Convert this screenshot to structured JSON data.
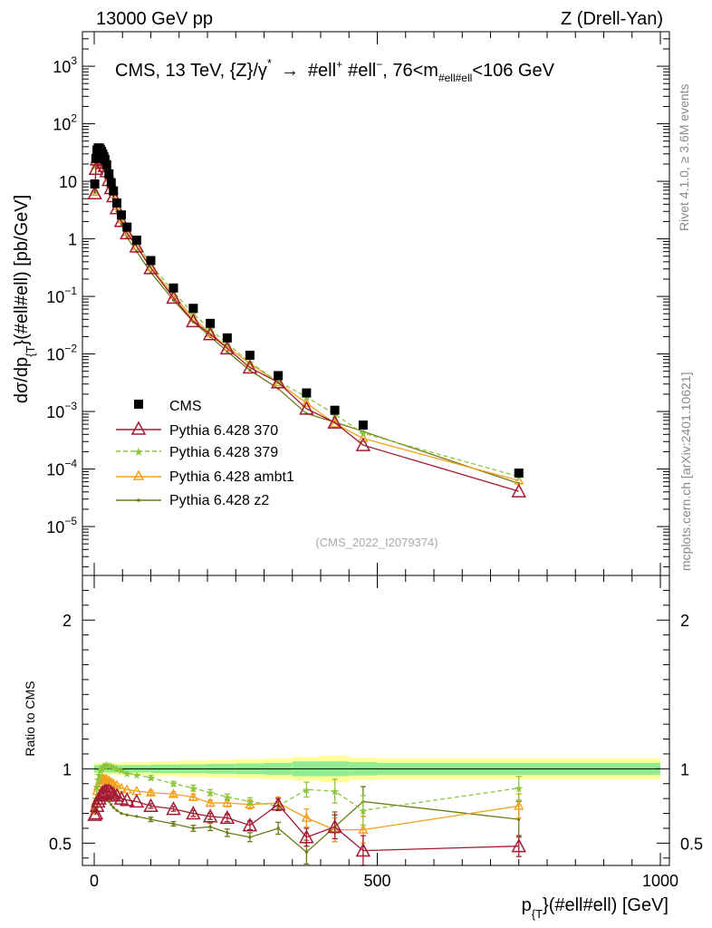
{
  "header": {
    "left": "13000 GeV pp",
    "right": "Z (Drell-Yan)"
  },
  "side_labels": {
    "rivet": "Rivet 4.1.0, ≥ 3.6M events",
    "mcplots": "mcplots.cern.ch [arXiv:2401.10621]"
  },
  "colors": {
    "data": "#000000",
    "p370": "#a31a32",
    "p379": "#8cc63e",
    "ambt1": "#f2a01c",
    "z2": "#6f7a14",
    "band_inner": "#90ee90",
    "band_outer": "#ffff99"
  },
  "chart_data": [
    {
      "type": "line",
      "panel": "main",
      "title": "CMS, 13 TeV, {Z}/γ* → #ell⁺ #ell⁻, 76<m#ell#ell<106 GeV",
      "title_parts": {
        "main": "CMS, 13 TeV, {Z}/γ",
        "star": "*",
        "arrow": "→",
        "lep1": "#ell",
        "plus": "+",
        "lep2": "#ell",
        "minus": "−",
        "mass": ", 76<m",
        "mass_sub": "#ell#ell",
        "mass_end": "<106 GeV"
      },
      "ylabel_parts": {
        "a": "dσ/dp",
        "sub": "{T",
        "b": "}(#ell#ell) [pb/GeV]"
      },
      "xlim": [
        -20,
        1000
      ],
      "ylim_log10": [
        -5.85,
        3.6
      ],
      "x_ticks": [
        0,
        500,
        1000
      ],
      "y_ticks": [
        {
          "exp": 3,
          "label": "10",
          "sup": "3"
        },
        {
          "exp": 2,
          "label": "10",
          "sup": "2"
        },
        {
          "exp": 1,
          "label": "10",
          "sup": ""
        },
        {
          "exp": 0,
          "label": "1",
          "sup": ""
        },
        {
          "exp": -1,
          "label": "10",
          "sup": "−1"
        },
        {
          "exp": -2,
          "label": "10",
          "sup": "−2"
        },
        {
          "exp": -3,
          "label": "10",
          "sup": "−3"
        },
        {
          "exp": -4,
          "label": "10",
          "sup": "−4"
        },
        {
          "exp": -5,
          "label": "10",
          "sup": "−5"
        }
      ],
      "watermark": "(CMS_2022_I2079374)",
      "legend_position": "bottom-left",
      "x": [
        1,
        3,
        5,
        7,
        9,
        11,
        13,
        15,
        17,
        19,
        22,
        26,
        30,
        34,
        40,
        48,
        58,
        75,
        100,
        140,
        175,
        205,
        235,
        275,
        325,
        375,
        425,
        475,
        750
      ],
      "series": [
        {
          "name": "CMS",
          "key": "data",
          "values": [
            9.0,
            25,
            35,
            38,
            38,
            36,
            33,
            30,
            27,
            24,
            19.5,
            13.5,
            9.5,
            6.8,
            4.2,
            2.6,
            1.6,
            0.95,
            0.42,
            0.14,
            0.062,
            0.034,
            0.019,
            0.0095,
            0.0042,
            0.0021,
            0.00105,
            0.00058,
            8.5e-05
          ]
        },
        {
          "name": "Pythia 6.428 370",
          "key": "p370",
          "values": [
            6.2,
            16.5,
            24,
            27.5,
            28.5,
            28,
            26,
            23.5,
            21,
            18.5,
            15,
            10.5,
            7.6,
            5.5,
            3.4,
            2.05,
            1.25,
            0.74,
            0.31,
            0.095,
            0.037,
            0.022,
            0.0125,
            0.0058,
            0.0032,
            0.00112,
            0.00064,
            0.00026,
            4.1e-05
          ],
          "err": [
            0,
            0,
            0,
            0,
            0,
            0,
            0,
            0,
            0,
            0,
            0,
            0,
            0,
            0,
            0,
            0,
            0,
            0,
            0,
            0,
            0,
            0,
            0,
            0,
            0,
            0,
            0,
            0,
            0
          ]
        },
        {
          "name": "Pythia 6.428 379",
          "key": "p379",
          "values": [
            6.6,
            19.5,
            30,
            35,
            37,
            37,
            34,
            31,
            28,
            24.5,
            20,
            13.8,
            9.8,
            6.8,
            4.2,
            2.5,
            1.48,
            0.85,
            0.36,
            0.12,
            0.05,
            0.027,
            0.015,
            0.0071,
            0.0033,
            0.0018,
            0.00089,
            0.00042,
            7.4e-05
          ]
        },
        {
          "name": "Pythia 6.428 ambt1",
          "key": "ambt1",
          "values": [
            6.5,
            19,
            28.5,
            33,
            34.5,
            34,
            31.5,
            28.5,
            25.5,
            22.5,
            18,
            12.5,
            8.6,
            6.0,
            3.7,
            2.2,
            1.3,
            0.75,
            0.32,
            0.105,
            0.042,
            0.023,
            0.0133,
            0.0068,
            0.0032,
            0.0014,
            0.00062,
            0.00034,
            6.3e-05
          ]
        },
        {
          "name": "Pythia 6.428 z2",
          "key": "z2",
          "values": [
            6.4,
            18,
            26,
            30,
            31,
            30.5,
            28,
            25,
            22.5,
            19.5,
            15.5,
            10.5,
            7.2,
            5.0,
            3.0,
            1.8,
            1.05,
            0.6,
            0.26,
            0.086,
            0.036,
            0.02,
            0.011,
            0.0052,
            0.0025,
            0.00092,
            0.00065,
            0.00045,
            5.6e-05
          ]
        }
      ]
    },
    {
      "type": "line",
      "panel": "ratio",
      "ylabel": "Ratio to CMS",
      "xlabel_parts": {
        "a": "p",
        "sub": "{T",
        "b": "}(#ell#ell) [GeV]"
      },
      "xlim": [
        -20,
        1000
      ],
      "ylim": [
        0.35,
        2.3
      ],
      "x_ticks": [
        0,
        500,
        1000
      ],
      "x_tick_labels": [
        "0",
        "500",
        "1000"
      ],
      "y_ticks": [
        0.5,
        1,
        2
      ],
      "y_tick_labels": [
        "0.5",
        "1",
        "2"
      ],
      "band_edges": [
        0,
        50,
        100,
        150,
        200,
        250,
        300,
        350,
        400,
        450,
        500,
        1000
      ],
      "band_inner": [
        0.025,
        0.025,
        0.028,
        0.03,
        0.033,
        0.036,
        0.04,
        0.05,
        0.05,
        0.045,
        0.04
      ],
      "band_outer": [
        0.04,
        0.045,
        0.05,
        0.055,
        0.06,
        0.065,
        0.07,
        0.08,
        0.09,
        0.075,
        0.07
      ],
      "x": [
        1,
        3,
        5,
        7,
        9,
        11,
        13,
        15,
        17,
        19,
        22,
        26,
        30,
        34,
        40,
        48,
        58,
        75,
        100,
        140,
        175,
        205,
        235,
        275,
        325,
        375,
        425,
        475,
        750
      ],
      "series": [
        {
          "name": "Pythia 6.428 370",
          "key": "p370",
          "values": [
            0.69,
            0.7,
            0.75,
            0.78,
            0.8,
            0.82,
            0.83,
            0.84,
            0.84,
            0.85,
            0.85,
            0.85,
            0.84,
            0.83,
            0.82,
            0.8,
            0.79,
            0.78,
            0.75,
            0.73,
            0.7,
            0.68,
            0.67,
            0.62,
            0.76,
            0.54,
            0.61,
            0.45,
            0.48
          ],
          "err": [
            0.01,
            0.01,
            0.01,
            0.01,
            0.01,
            0.01,
            0.01,
            0.01,
            0.01,
            0.01,
            0.01,
            0.01,
            0.01,
            0.01,
            0.01,
            0.01,
            0.01,
            0.01,
            0.015,
            0.015,
            0.02,
            0.02,
            0.025,
            0.03,
            0.04,
            0.06,
            0.08,
            0.1,
            0.07
          ]
        },
        {
          "name": "Pythia 6.428 379",
          "key": "p379",
          "values": [
            0.73,
            0.8,
            0.88,
            0.93,
            0.96,
            0.99,
            1.0,
            1.01,
            1.02,
            1.02,
            1.03,
            1.02,
            1.02,
            1.01,
            1.0,
            0.99,
            0.97,
            0.96,
            0.94,
            0.9,
            0.87,
            0.84,
            0.81,
            0.78,
            0.75,
            0.86,
            0.85,
            0.72,
            0.87
          ],
          "err": [
            0.01,
            0.01,
            0.01,
            0.01,
            0.01,
            0.01,
            0.01,
            0.01,
            0.01,
            0.01,
            0.01,
            0.01,
            0.01,
            0.01,
            0.01,
            0.01,
            0.01,
            0.01,
            0.015,
            0.015,
            0.02,
            0.02,
            0.02,
            0.025,
            0.03,
            0.05,
            0.08,
            0.1,
            0.08
          ]
        },
        {
          "name": "Pythia 6.428 ambt1",
          "key": "ambt1",
          "values": [
            0.72,
            0.78,
            0.85,
            0.88,
            0.9,
            0.92,
            0.93,
            0.93,
            0.93,
            0.93,
            0.93,
            0.92,
            0.91,
            0.9,
            0.89,
            0.87,
            0.86,
            0.85,
            0.84,
            0.83,
            0.81,
            0.77,
            0.77,
            0.76,
            0.77,
            0.67,
            0.59,
            0.59,
            0.75
          ],
          "err": [
            0.01,
            0.01,
            0.01,
            0.01,
            0.01,
            0.01,
            0.01,
            0.01,
            0.01,
            0.01,
            0.01,
            0.01,
            0.01,
            0.01,
            0.01,
            0.01,
            0.01,
            0.01,
            0.015,
            0.015,
            0.02,
            0.02,
            0.025,
            0.03,
            0.04,
            0.06,
            0.08,
            0.09,
            0.08
          ]
        },
        {
          "name": "Pythia 6.428 z2",
          "key": "z2",
          "values": [
            0.71,
            0.72,
            0.74,
            0.77,
            0.79,
            0.8,
            0.8,
            0.8,
            0.8,
            0.8,
            0.79,
            0.78,
            0.76,
            0.74,
            0.72,
            0.7,
            0.69,
            0.68,
            0.66,
            0.63,
            0.6,
            0.61,
            0.57,
            0.54,
            0.6,
            0.44,
            0.61,
            0.78,
            0.66
          ],
          "err": [
            0.01,
            0.01,
            0.01,
            0.01,
            0.01,
            0.01,
            0.01,
            0.01,
            0.01,
            0.01,
            0.01,
            0.01,
            0.01,
            0.01,
            0.01,
            0.01,
            0.01,
            0.01,
            0.015,
            0.015,
            0.02,
            0.025,
            0.025,
            0.03,
            0.04,
            0.08,
            0.1,
            0.1,
            0.12
          ]
        }
      ]
    }
  ]
}
